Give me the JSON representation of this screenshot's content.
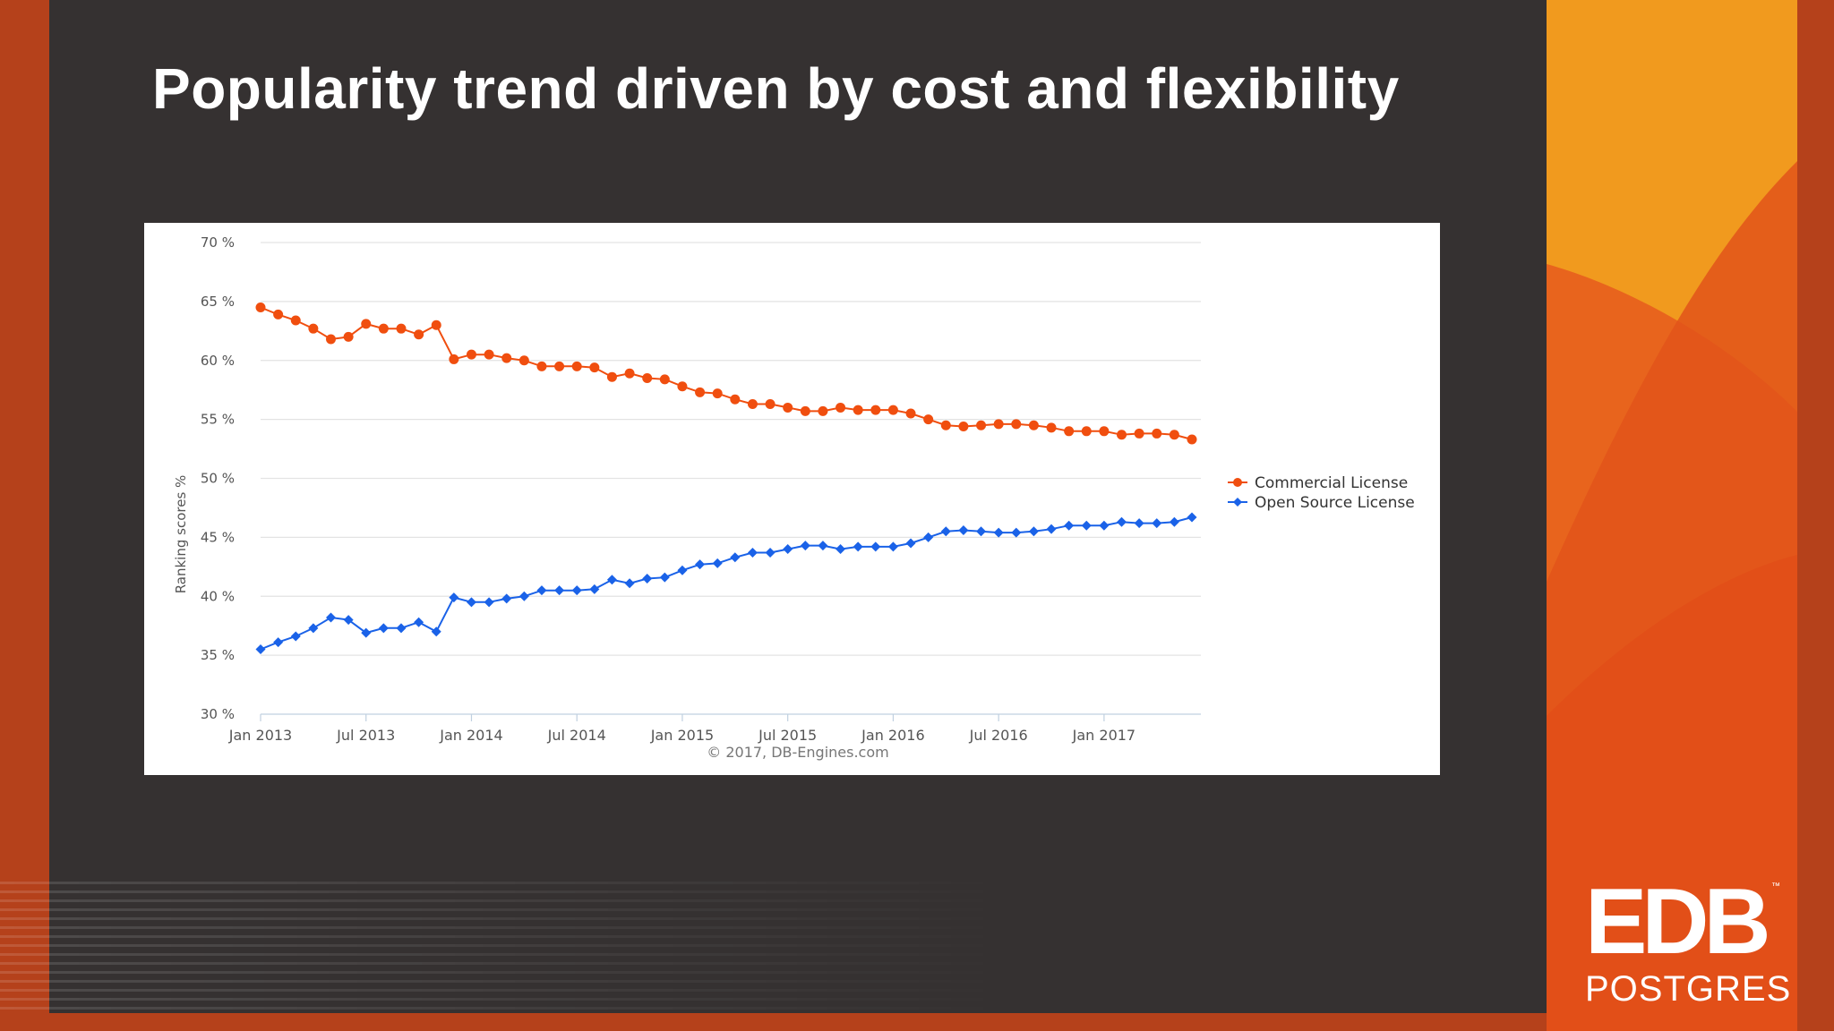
{
  "slide": {
    "title": "Popularity trend driven by cost and flexibility",
    "logo_main": "EDB",
    "logo_sub": "POSTGRES",
    "logo_tm": "™"
  },
  "colors": {
    "background": "#353131",
    "accent_dark": "#b5411b",
    "accent_orange": "#f19a1e",
    "commercial": "#f04e0f",
    "open_source": "#1a62e8"
  },
  "chart_data": {
    "type": "line",
    "title": "",
    "xlabel": "",
    "ylabel": "Ranking scores %",
    "ylim": [
      30,
      70
    ],
    "yticks": [
      30,
      35,
      40,
      45,
      50,
      55,
      60,
      65,
      70
    ],
    "ytick_labels": [
      "30 %",
      "35 %",
      "40 %",
      "45 %",
      "50 %",
      "55 %",
      "60 %",
      "65 %",
      "70 %"
    ],
    "xrange": [
      0,
      53
    ],
    "xticks": [
      0,
      6,
      12,
      18,
      24,
      30,
      36,
      42,
      48
    ],
    "xtick_labels": [
      "Jan 2013",
      "Jul 2013",
      "Jan 2014",
      "Jul 2014",
      "Jan 2015",
      "Jul 2015",
      "Jan 2016",
      "Jul 2016",
      "Jan 2017"
    ],
    "x_unit": "months since Jan 2013",
    "credit": "© 2017, DB-Engines.com",
    "legend_position": "right",
    "series": [
      {
        "name": "Commercial License",
        "color": "#f04e0f",
        "marker": "circle",
        "values": [
          64.5,
          63.9,
          63.4,
          62.7,
          61.8,
          62.0,
          63.1,
          62.7,
          62.7,
          62.2,
          63.0,
          60.1,
          60.5,
          60.5,
          60.2,
          60.0,
          59.5,
          59.5,
          59.5,
          59.4,
          58.6,
          58.9,
          58.5,
          58.4,
          57.8,
          57.3,
          57.2,
          56.7,
          56.3,
          56.3,
          56.0,
          55.7,
          55.7,
          56.0,
          55.8,
          55.8,
          55.8,
          55.5,
          55.0,
          54.5,
          54.4,
          54.5,
          54.6,
          54.6,
          54.5,
          54.3,
          54.0,
          54.0,
          54.0,
          53.7,
          53.8,
          53.8,
          53.7,
          53.3
        ]
      },
      {
        "name": "Open Source License",
        "color": "#1a62e8",
        "marker": "diamond",
        "values": [
          35.5,
          36.1,
          36.6,
          37.3,
          38.2,
          38.0,
          36.9,
          37.3,
          37.3,
          37.8,
          37.0,
          39.9,
          39.5,
          39.5,
          39.8,
          40.0,
          40.5,
          40.5,
          40.5,
          40.6,
          41.4,
          41.1,
          41.5,
          41.6,
          42.2,
          42.7,
          42.8,
          43.3,
          43.7,
          43.7,
          44.0,
          44.3,
          44.3,
          44.0,
          44.2,
          44.2,
          44.2,
          44.5,
          45.0,
          45.5,
          45.6,
          45.5,
          45.4,
          45.4,
          45.5,
          45.7,
          46.0,
          46.0,
          46.0,
          46.3,
          46.2,
          46.2,
          46.3,
          46.7
        ]
      }
    ]
  }
}
